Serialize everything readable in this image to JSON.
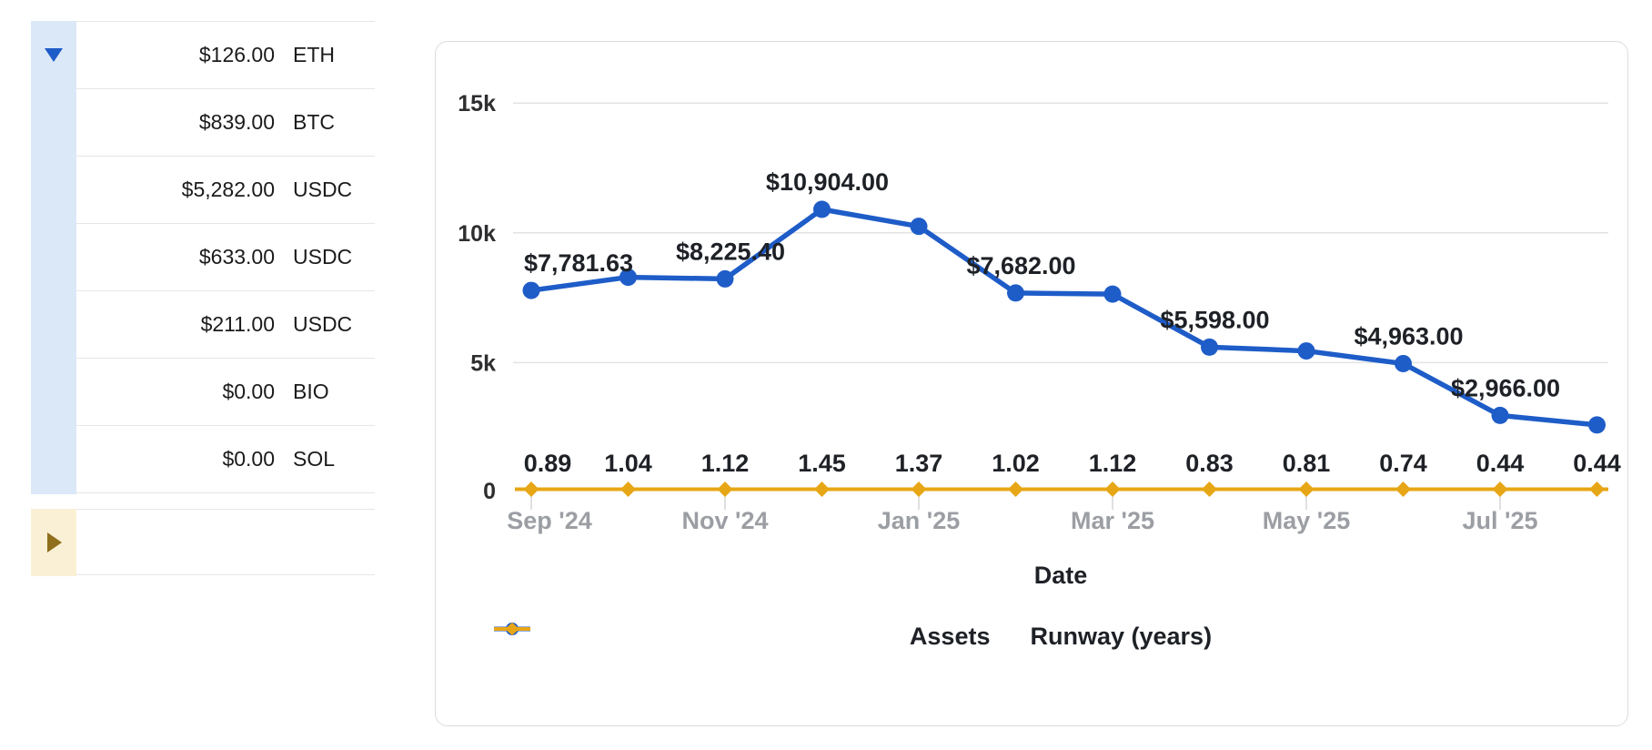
{
  "holdings_table": {
    "rows": [
      {
        "amount": "$126.00",
        "ticker": "ETH"
      },
      {
        "amount": "$839.00",
        "ticker": "BTC"
      },
      {
        "amount": "$5,282.00",
        "ticker": "USDC"
      },
      {
        "amount": "$633.00",
        "ticker": "USDC"
      },
      {
        "amount": "$211.00",
        "ticker": "USDC"
      },
      {
        "amount": "$0.00",
        "ticker": "BIO"
      },
      {
        "amount": "$0.00",
        "ticker": "SOL"
      }
    ],
    "collapse_icon": "triangle-down-icon",
    "expand_icon": "triangle-right-icon"
  },
  "chart_data": {
    "type": "line",
    "title": "",
    "xlabel": "Date",
    "x": [
      "Sep '24",
      "Oct '24",
      "Nov '24",
      "Dec '24",
      "Jan '25",
      "Feb '25",
      "Mar '25",
      "Apr '25",
      "May '25",
      "Jun '25",
      "Jul '25",
      "Aug '25"
    ],
    "x_axis_tick_labels": [
      "Sep '24",
      "Nov '24",
      "Jan '25",
      "Mar '25",
      "May '25",
      "Jul '25"
    ],
    "y_axis_ticks": [
      {
        "label": "15k",
        "value": 15000,
        "gridline": true
      },
      {
        "label": "10k",
        "value": 10000,
        "gridline": true
      },
      {
        "label": "5k",
        "value": 5000,
        "gridline": true
      },
      {
        "label": "0",
        "value": 0,
        "gridline": false
      }
    ],
    "ylim": [
      0,
      16000
    ],
    "grid": true,
    "legend_position": "bottom",
    "series": [
      {
        "name": "Assets",
        "color": "#1e5cc8",
        "marker": "circle",
        "values": [
          7781.63,
          8290,
          8225.4,
          10904.0,
          10250,
          7682.0,
          7640,
          5598.0,
          5450,
          4963.0,
          2966.0,
          2600
        ],
        "labels": [
          "$7,781.63",
          "",
          "$8,225.40",
          "$10,904.00",
          "",
          "$7,682.00",
          "",
          "$5,598.00",
          "",
          "$4,963.00",
          "$2,966.00",
          ""
        ]
      },
      {
        "name": "Runway (years)",
        "color": "#e7a615",
        "marker": "diamond",
        "values": [
          0.89,
          1.04,
          1.12,
          1.45,
          1.37,
          1.02,
          1.12,
          0.83,
          0.81,
          0.74,
          0.44,
          0.44
        ],
        "labels": [
          "0.89",
          "1.04",
          "1.12",
          "1.45",
          "1.37",
          "1.02",
          "1.12",
          "0.83",
          "0.81",
          "0.74",
          "0.44",
          "0.44"
        ]
      }
    ]
  },
  "colors": {
    "accent_blue": "#1e5cc8",
    "accent_orange": "#e7a615",
    "light_blue_bg": "#dbe8f8",
    "light_yellow_bg": "#faf0d5",
    "gold_triangle": "#8f6f1c"
  }
}
